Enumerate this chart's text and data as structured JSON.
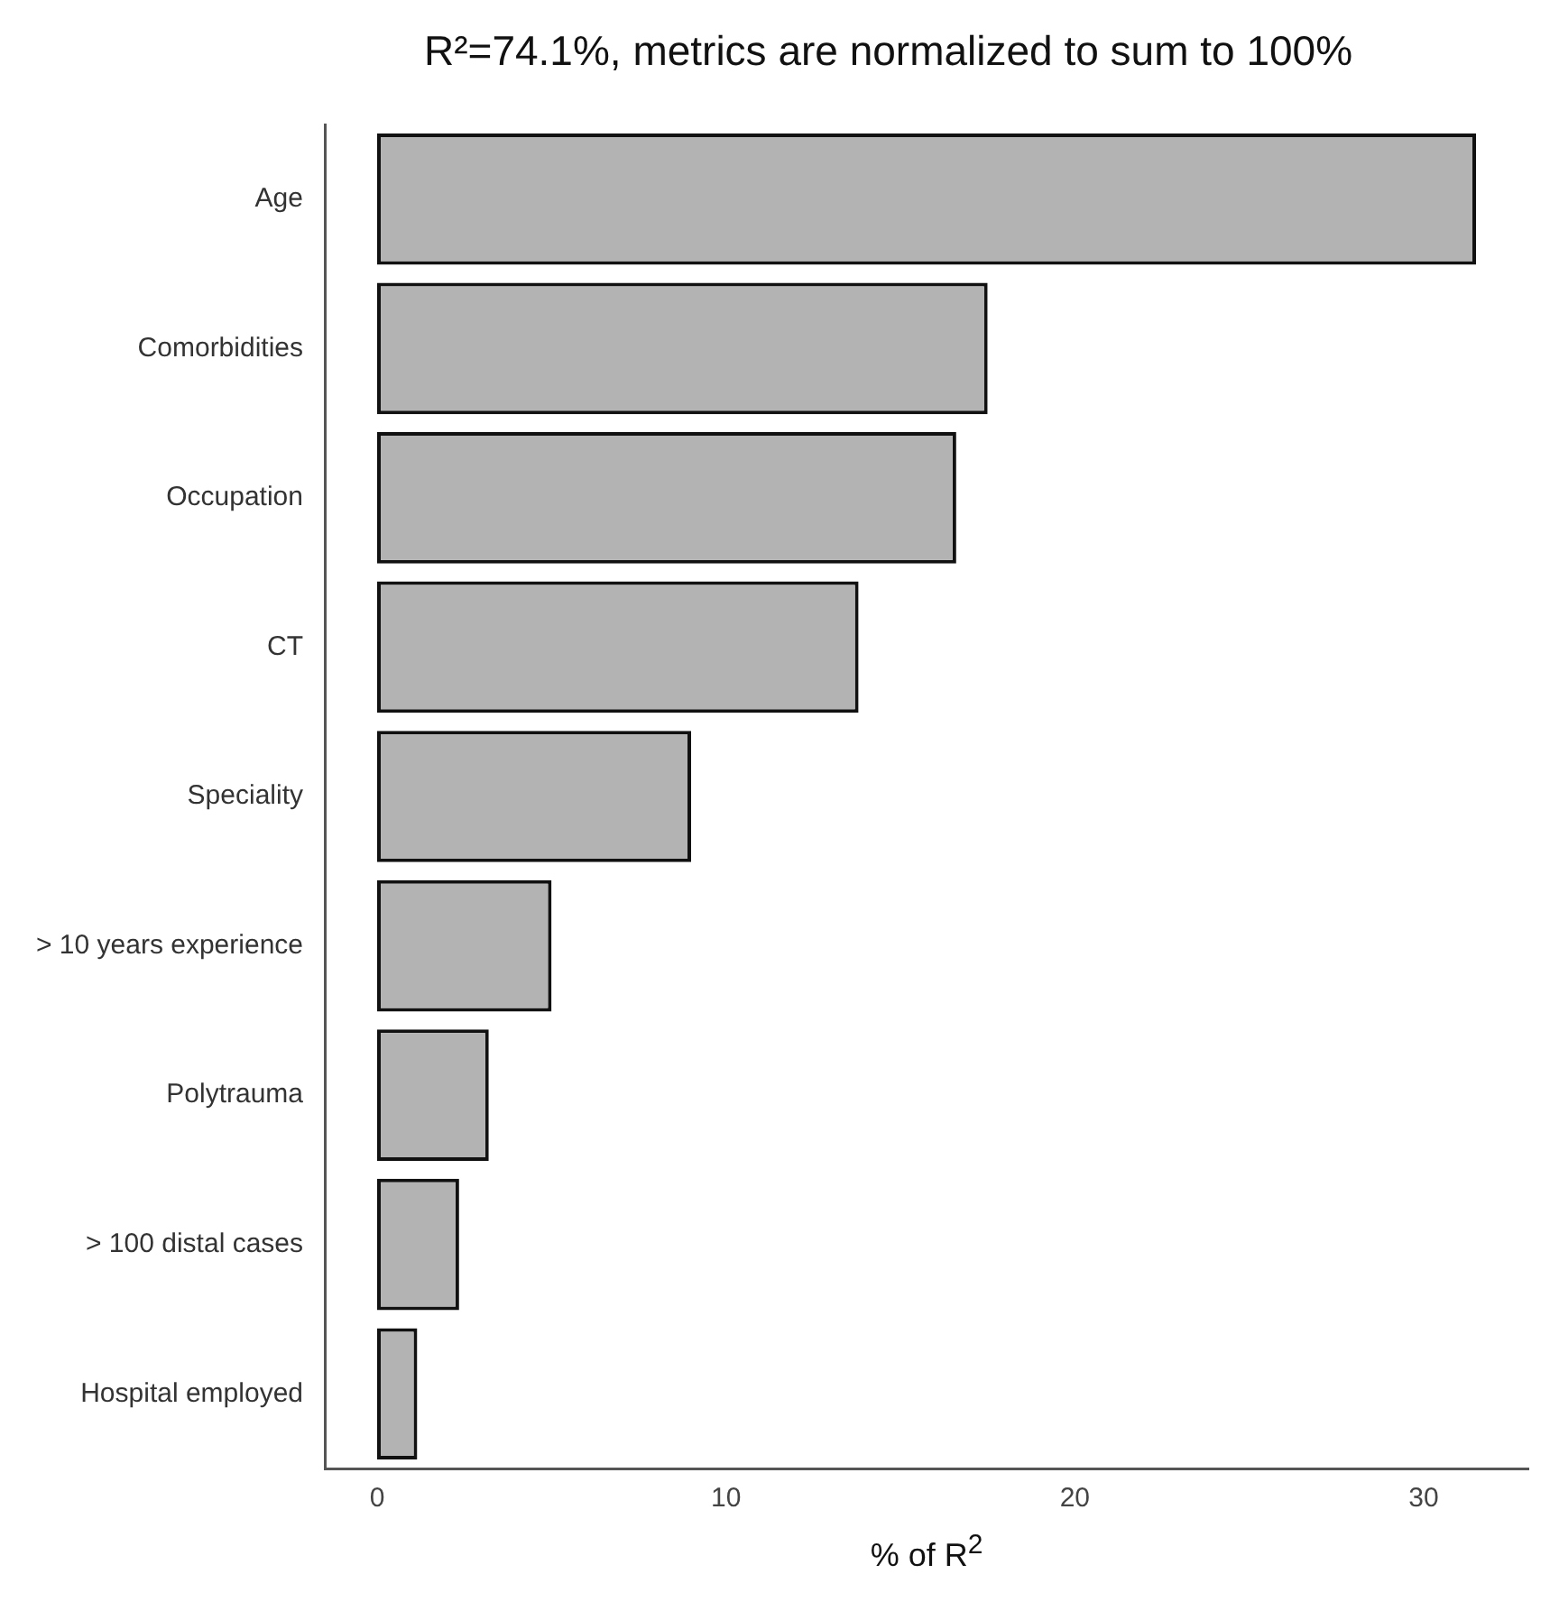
{
  "chart_data": {
    "type": "bar",
    "orientation": "horizontal",
    "title": "R²=74.1%, metrics are normalized to sum to 100%",
    "xlabel": "% of R$^{2}$",
    "categories": [
      "Age",
      "Comorbidities",
      "Occupation",
      "CT",
      "Speciality",
      "> 10 years experience",
      "Polytrauma",
      "> 100 distal cases",
      "Hospital employed"
    ],
    "values": [
      31.5,
      17.5,
      16.6,
      13.8,
      9.0,
      5.0,
      3.2,
      2.35,
      1.15
    ],
    "color": "#b3b3b3",
    "xlim": [
      -1.5,
      33
    ],
    "xticks": [
      0,
      10,
      20,
      30
    ],
    "grid": false,
    "legend": false
  }
}
